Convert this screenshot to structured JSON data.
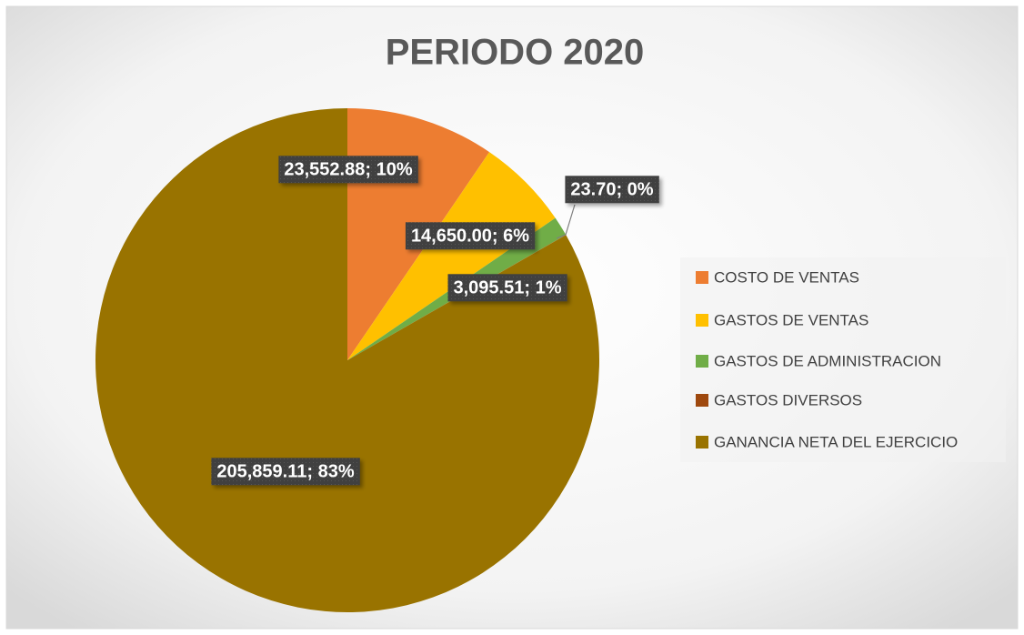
{
  "chart_data": {
    "type": "pie",
    "title": "PERIODO 2020",
    "categories": [
      "COSTO DE VENTAS",
      "GASTOS DE VENTAS",
      "GASTOS DE ADMINISTRACION",
      "GASTOS DIVERSOS",
      "GANANCIA NETA DEL EJERCICIO"
    ],
    "values": [
      23552.88,
      14650.0,
      3095.51,
      23.7,
      205859.11
    ],
    "value_labels": [
      "23,552.88; 10%",
      "14,650.00; 6%",
      "3,095.51; 1%",
      "23.70; 0%",
      "205,859.11; 83%"
    ],
    "colors": [
      "#ed7d31",
      "#ffc000",
      "#70ad47",
      "#9e480e",
      "#997300"
    ],
    "legend": "right"
  }
}
